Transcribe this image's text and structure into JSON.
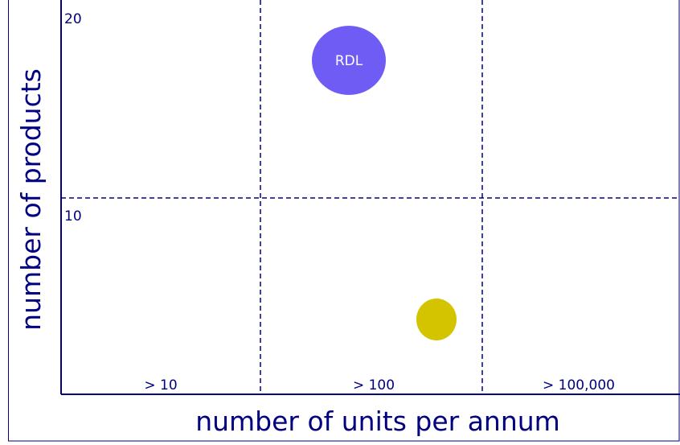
{
  "axes": {
    "x_title": "number of units per annum",
    "y_title": "number of products"
  },
  "columns": [
    "> 10",
    "> 100",
    "> 100,000"
  ],
  "rows": [
    "20",
    "10"
  ],
  "bubbles": [
    {
      "label": "RDL"
    }
  ]
}
